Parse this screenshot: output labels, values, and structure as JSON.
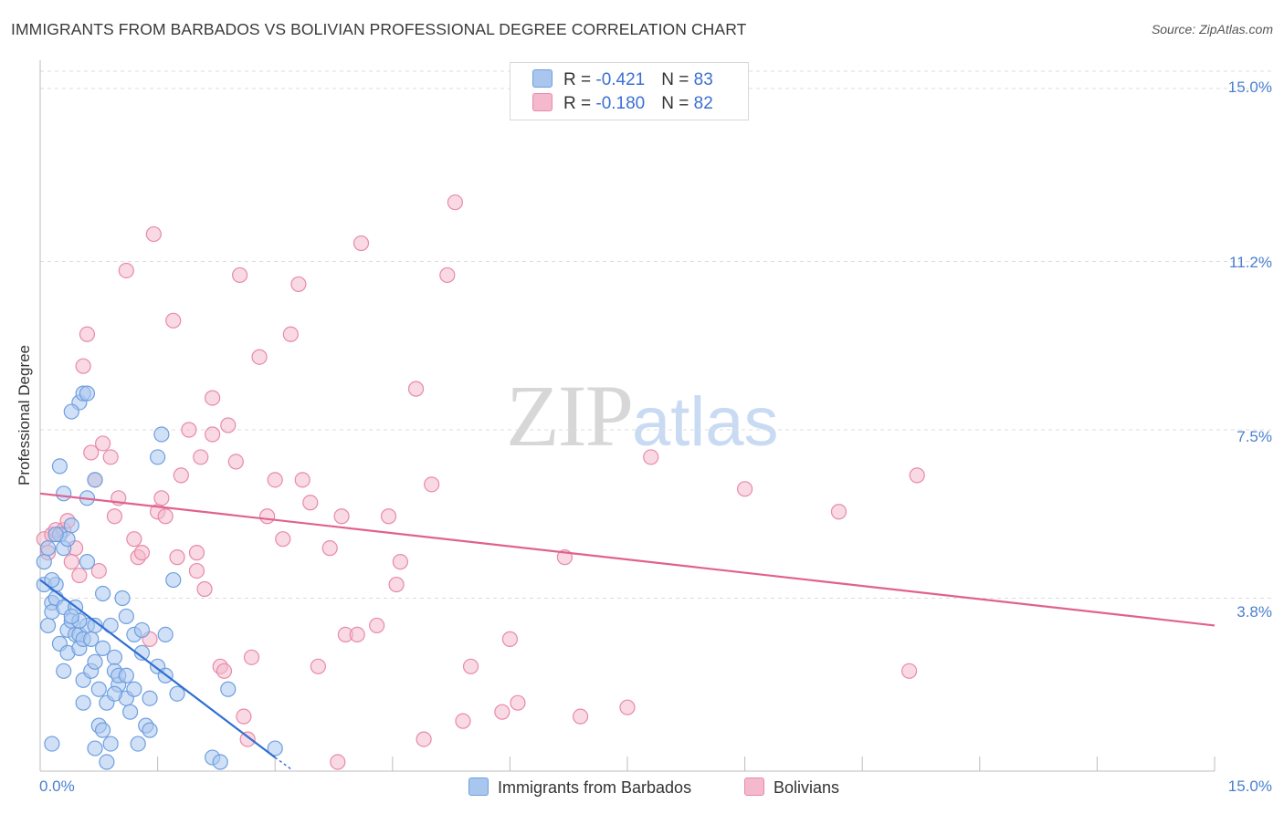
{
  "title": "IMMIGRANTS FROM BARBADOS VS BOLIVIAN PROFESSIONAL DEGREE CORRELATION CHART",
  "source": "Source: ZipAtlas.com",
  "watermark": {
    "zip": "ZIP",
    "atlas": "atlas"
  },
  "legend_top": {
    "rows": [
      {
        "r_label": "R = ",
        "r_value": "-0.421",
        "n_label": "N = ",
        "n_value": "83"
      },
      {
        "r_label": "R = ",
        "r_value": "-0.180",
        "n_label": "N = ",
        "n_value": "82"
      }
    ]
  },
  "colors": {
    "blue_fill": "#a9c6ee",
    "blue_stroke": "#6f9fdf",
    "blue_line": "#2f6fd1",
    "pink_fill": "#f4b9cc",
    "pink_stroke": "#e88aa8",
    "pink_line": "#e0628e",
    "grid": "#dcdcdc",
    "tick_text": "#4a7fd0"
  },
  "chart_data": {
    "type": "scatter",
    "title": "IMMIGRANTS FROM BARBADOS VS BOLIVIAN PROFESSIONAL DEGREE CORRELATION CHART",
    "xlabel": "",
    "ylabel": "Professional Degree",
    "xlim": [
      0,
      15
    ],
    "ylim": [
      0,
      15
    ],
    "x_ticks": [
      "0.0%",
      "15.0%"
    ],
    "y_ticks": [
      {
        "value": 15.0,
        "label": "15.0%"
      },
      {
        "value": 11.2,
        "label": "11.2%"
      },
      {
        "value": 7.5,
        "label": "7.5%"
      },
      {
        "value": 3.8,
        "label": "3.8%"
      }
    ],
    "grid": true,
    "legend_position": "top-center",
    "series": [
      {
        "name": "Immigrants from Barbados",
        "color": "#a9c6ee",
        "trend": {
          "x": [
            0.0,
            3.0
          ],
          "y": [
            4.2,
            0.3
          ],
          "dashed_to": [
            3.2,
            0.05
          ]
        },
        "points": [
          [
            0.05,
            4.6
          ],
          [
            0.05,
            4.1
          ],
          [
            0.1,
            3.2
          ],
          [
            0.15,
            3.7
          ],
          [
            0.15,
            3.5
          ],
          [
            0.2,
            4.1
          ],
          [
            0.2,
            3.8
          ],
          [
            0.25,
            5.2
          ],
          [
            0.25,
            2.8
          ],
          [
            0.3,
            3.6
          ],
          [
            0.3,
            4.9
          ],
          [
            0.35,
            3.1
          ],
          [
            0.35,
            2.6
          ],
          [
            0.4,
            5.4
          ],
          [
            0.4,
            3.3
          ],
          [
            0.45,
            3.0
          ],
          [
            0.5,
            3.0
          ],
          [
            0.5,
            2.7
          ],
          [
            0.55,
            2.0
          ],
          [
            0.55,
            1.5
          ],
          [
            0.6,
            3.2
          ],
          [
            0.6,
            4.6
          ],
          [
            0.65,
            2.2
          ],
          [
            0.7,
            3.2
          ],
          [
            0.7,
            0.5
          ],
          [
            0.75,
            1.8
          ],
          [
            0.75,
            1.0
          ],
          [
            0.8,
            2.7
          ],
          [
            0.8,
            0.9
          ],
          [
            0.85,
            1.5
          ],
          [
            0.9,
            3.2
          ],
          [
            0.9,
            0.6
          ],
          [
            0.95,
            2.5
          ],
          [
            0.95,
            2.2
          ],
          [
            1.0,
            1.9
          ],
          [
            1.0,
            2.1
          ],
          [
            1.05,
            3.8
          ],
          [
            1.1,
            3.4
          ],
          [
            1.1,
            1.6
          ],
          [
            1.15,
            1.3
          ],
          [
            1.2,
            3.0
          ],
          [
            1.2,
            1.8
          ],
          [
            1.25,
            0.6
          ],
          [
            1.3,
            2.6
          ],
          [
            1.35,
            1.0
          ],
          [
            1.4,
            0.9
          ],
          [
            1.4,
            1.6
          ],
          [
            1.5,
            2.3
          ],
          [
            1.5,
            6.9
          ],
          [
            1.55,
            7.4
          ],
          [
            1.6,
            2.1
          ],
          [
            1.6,
            3.0
          ],
          [
            1.7,
            4.2
          ],
          [
            1.75,
            1.7
          ],
          [
            2.2,
            0.3
          ],
          [
            2.3,
            0.2
          ],
          [
            2.4,
            1.8
          ],
          [
            3.0,
            0.5
          ],
          [
            0.5,
            8.1
          ],
          [
            0.55,
            8.3
          ],
          [
            0.4,
            7.9
          ],
          [
            0.7,
            6.4
          ],
          [
            0.3,
            6.1
          ],
          [
            0.35,
            5.1
          ],
          [
            0.2,
            5.2
          ],
          [
            0.1,
            4.9
          ],
          [
            0.6,
            6.0
          ],
          [
            0.25,
            6.7
          ],
          [
            0.45,
            3.6
          ],
          [
            0.55,
            2.9
          ],
          [
            0.3,
            2.2
          ],
          [
            0.7,
            2.4
          ],
          [
            0.8,
            3.9
          ],
          [
            0.65,
            2.9
          ],
          [
            0.95,
            1.7
          ],
          [
            1.1,
            2.1
          ],
          [
            1.3,
            3.1
          ],
          [
            0.15,
            0.6
          ],
          [
            0.85,
            0.2
          ],
          [
            0.5,
            3.3
          ],
          [
            0.15,
            4.2
          ],
          [
            0.4,
            3.4
          ],
          [
            0.6,
            8.3
          ]
        ]
      },
      {
        "name": "Bolivians",
        "color": "#f4b9cc",
        "trend": {
          "x": [
            0.0,
            15.0
          ],
          "y": [
            6.1,
            3.2
          ]
        },
        "points": [
          [
            0.05,
            5.1
          ],
          [
            0.1,
            4.8
          ],
          [
            0.15,
            5.2
          ],
          [
            0.2,
            5.3
          ],
          [
            0.3,
            5.3
          ],
          [
            0.35,
            5.5
          ],
          [
            0.4,
            4.6
          ],
          [
            0.45,
            4.9
          ],
          [
            0.5,
            4.3
          ],
          [
            0.55,
            8.9
          ],
          [
            0.6,
            9.6
          ],
          [
            0.65,
            7.0
          ],
          [
            0.7,
            6.4
          ],
          [
            0.75,
            4.4
          ],
          [
            0.8,
            7.2
          ],
          [
            0.9,
            6.9
          ],
          [
            0.95,
            5.6
          ],
          [
            1.0,
            6.0
          ],
          [
            1.1,
            11.0
          ],
          [
            1.2,
            5.1
          ],
          [
            1.25,
            4.7
          ],
          [
            1.3,
            4.8
          ],
          [
            1.4,
            2.9
          ],
          [
            1.45,
            11.8
          ],
          [
            1.5,
            5.7
          ],
          [
            1.55,
            6.0
          ],
          [
            1.6,
            5.6
          ],
          [
            1.7,
            9.9
          ],
          [
            1.75,
            4.7
          ],
          [
            1.8,
            6.5
          ],
          [
            1.9,
            7.5
          ],
          [
            2.0,
            4.4
          ],
          [
            2.0,
            4.8
          ],
          [
            2.05,
            6.9
          ],
          [
            2.1,
            4.0
          ],
          [
            2.2,
            8.2
          ],
          [
            2.2,
            7.4
          ],
          [
            2.3,
            2.3
          ],
          [
            2.35,
            2.2
          ],
          [
            2.4,
            7.6
          ],
          [
            2.5,
            6.8
          ],
          [
            2.55,
            10.9
          ],
          [
            2.6,
            1.2
          ],
          [
            2.65,
            0.7
          ],
          [
            2.7,
            2.5
          ],
          [
            2.8,
            9.1
          ],
          [
            2.9,
            5.6
          ],
          [
            3.0,
            6.4
          ],
          [
            3.1,
            5.1
          ],
          [
            3.2,
            9.6
          ],
          [
            3.3,
            10.7
          ],
          [
            3.35,
            6.4
          ],
          [
            3.45,
            5.9
          ],
          [
            3.55,
            2.3
          ],
          [
            3.7,
            4.9
          ],
          [
            3.8,
            0.2
          ],
          [
            3.85,
            5.6
          ],
          [
            3.9,
            3.0
          ],
          [
            4.05,
            3.0
          ],
          [
            4.1,
            11.6
          ],
          [
            4.3,
            3.2
          ],
          [
            4.45,
            5.6
          ],
          [
            4.55,
            4.1
          ],
          [
            4.6,
            4.6
          ],
          [
            4.8,
            8.4
          ],
          [
            4.9,
            0.7
          ],
          [
            5.0,
            6.3
          ],
          [
            5.2,
            10.9
          ],
          [
            5.3,
            12.5
          ],
          [
            5.4,
            1.1
          ],
          [
            5.5,
            2.3
          ],
          [
            5.9,
            1.3
          ],
          [
            6.0,
            2.9
          ],
          [
            6.1,
            1.5
          ],
          [
            6.7,
            4.7
          ],
          [
            6.9,
            1.2
          ],
          [
            7.5,
            1.4
          ],
          [
            7.8,
            6.9
          ],
          [
            9.0,
            6.2
          ],
          [
            10.2,
            5.7
          ],
          [
            11.2,
            6.5
          ],
          [
            11.1,
            2.2
          ]
        ]
      }
    ]
  },
  "legend_bottom": [
    {
      "label": "Immigrants from Barbados"
    },
    {
      "label": "Bolivians"
    }
  ]
}
